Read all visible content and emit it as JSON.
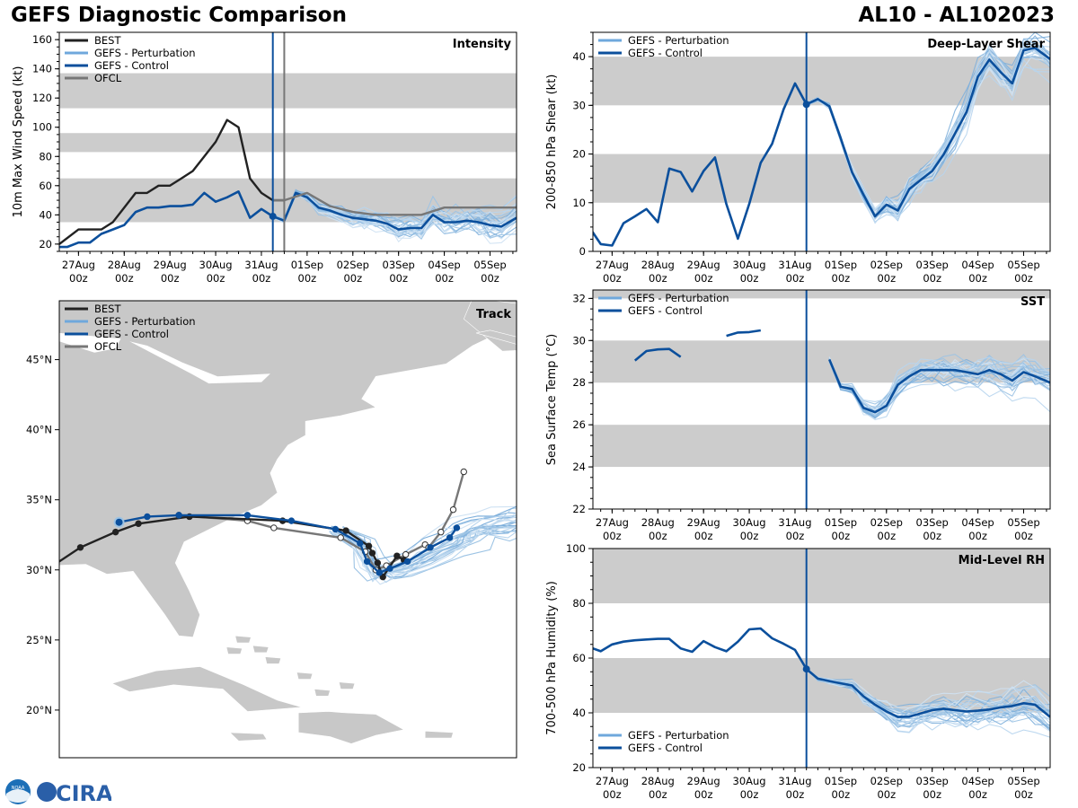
{
  "header": {
    "title": "GEFS Diagnostic Comparison",
    "storm_id": "AL10 - AL102023"
  },
  "logo": {
    "noaa": "NOAA",
    "cira": "CIRA"
  },
  "colors": {
    "best": "#222222",
    "pert": "#7fb0dc",
    "pert_legend": "#6fa8dc",
    "control": "#0b4f9c",
    "ofcl": "#777777",
    "band": "#cccccc",
    "land": "#c8c8c8"
  },
  "time_axis": {
    "ticks": [
      {
        "day": 0,
        "label": "27Aug",
        "sub": "00z"
      },
      {
        "day": 1,
        "label": "28Aug",
        "sub": "00z"
      },
      {
        "day": 2,
        "label": "29Aug",
        "sub": "00z"
      },
      {
        "day": 3,
        "label": "30Aug",
        "sub": "00z"
      },
      {
        "day": 4,
        "label": "31Aug",
        "sub": "00z"
      },
      {
        "day": 5,
        "label": "01Sep",
        "sub": "00z"
      },
      {
        "day": 6,
        "label": "02Sep",
        "sub": "00z"
      },
      {
        "day": 7,
        "label": "03Sep",
        "sub": "00z"
      },
      {
        "day": 8,
        "label": "04Sep",
        "sub": "00z"
      },
      {
        "day": 9,
        "label": "05Sep",
        "sub": "00z"
      }
    ],
    "xlim": [
      -0.42,
      9.58
    ],
    "init_day": 4.25
  },
  "chart_data": [
    {
      "id": "intensity",
      "type": "line",
      "title": "Intensity",
      "ylabel": "10m Max Wind Speed (kt)",
      "ylim": [
        15,
        165
      ],
      "yticks": [
        20,
        40,
        60,
        80,
        100,
        120,
        140,
        160
      ],
      "bands": [
        [
          35,
          65
        ],
        [
          83,
          96
        ],
        [
          113,
          137
        ]
      ],
      "legend": [
        "BEST",
        "GEFS - Perturbation",
        "GEFS - Control",
        "OFCL"
      ],
      "ofcl_day": 4.5,
      "series": [
        {
          "name": "BEST",
          "x": [
            -0.42,
            0,
            0.5,
            0.75,
            1,
            1.25,
            1.5,
            1.75,
            2,
            2.25,
            2.5,
            2.75,
            3,
            3.25,
            3.5,
            3.75,
            4,
            4.25,
            4.5
          ],
          "y": [
            20,
            30,
            30,
            35,
            45,
            55,
            55,
            60,
            60,
            65,
            70,
            80,
            90,
            105,
            100,
            65,
            55,
            50,
            50
          ]
        },
        {
          "name": "GEFS - Control",
          "x": [
            -0.42,
            -0.25,
            0,
            0.25,
            0.5,
            0.75,
            1,
            1.25,
            1.5,
            1.75,
            2,
            2.25,
            2.5,
            2.75,
            3,
            3.25,
            3.5,
            3.75,
            4,
            4.25,
            4.5,
            4.75,
            5,
            5.25,
            5.5,
            5.75,
            6,
            6.25,
            6.5,
            6.75,
            7,
            7.25,
            7.5,
            7.75,
            8,
            8.25,
            8.5,
            8.75,
            9,
            9.25,
            9.58
          ],
          "y": [
            18,
            18,
            21,
            21,
            27,
            30,
            33,
            42,
            45,
            45,
            46,
            46,
            47,
            55,
            49,
            52,
            56,
            38,
            44,
            39,
            36,
            55,
            52,
            45,
            43,
            40,
            38,
            37,
            36,
            34,
            30,
            31,
            31,
            40,
            35,
            35,
            36,
            35,
            33,
            32,
            38
          ]
        },
        {
          "name": "OFCL",
          "x": [
            4.25,
            4.5,
            5,
            5.5,
            6,
            6.5,
            7,
            7.5,
            8,
            8.5,
            9,
            9.58
          ],
          "y": [
            50,
            50,
            55,
            46,
            42,
            40,
            40,
            40,
            45,
            45,
            45,
            45
          ]
        }
      ]
    },
    {
      "id": "shear",
      "type": "line",
      "title": "Deep-Layer Shear",
      "ylabel": "200-850 hPa Shear (kt)",
      "ylim": [
        0,
        45
      ],
      "yticks": [
        0,
        10,
        20,
        30,
        40
      ],
      "bands": [
        [
          10,
          20
        ],
        [
          30,
          40
        ]
      ],
      "legend": [
        "GEFS - Perturbation",
        "GEFS - Control"
      ],
      "series": [
        {
          "name": "GEFS - Control",
          "x": [
            -0.5,
            -0.25,
            0,
            0.25,
            0.5,
            0.75,
            1,
            1.25,
            1.5,
            1.75,
            2,
            2.25,
            2.5,
            2.75,
            3,
            3.25,
            3.5,
            3.75,
            4,
            4.25,
            4.5,
            4.75,
            5,
            5.25,
            5.5,
            5.75,
            6,
            6.25,
            6.5,
            6.75,
            7,
            7.25,
            7.5,
            7.75,
            8,
            8.25,
            8.5,
            8.75,
            9,
            9.25,
            9.58
          ],
          "y": [
            5,
            1.5,
            1.2,
            5.8,
            7.2,
            8.7,
            6,
            17,
            16.3,
            12.3,
            16.5,
            19.3,
            9.7,
            2.6,
            9.8,
            18.2,
            22.1,
            29.2,
            34.5,
            30.2,
            31.3,
            29.8,
            23.2,
            16.2,
            11.6,
            7.2,
            9.6,
            8.4,
            12.8,
            14.7,
            16.5,
            19.9,
            24.2,
            28.6,
            35.9,
            39.4,
            36.8,
            34.5,
            41.3,
            41.8,
            39.5
          ]
        }
      ]
    },
    {
      "id": "sst",
      "type": "line",
      "title": "SST",
      "ylabel": "Sea Surface Temp (°C)",
      "ylim": [
        22,
        32.4
      ],
      "yticks": [
        22,
        24,
        26,
        28,
        30,
        32
      ],
      "bands": [
        [
          24,
          26
        ],
        [
          28,
          30
        ],
        [
          32,
          32.4
        ]
      ],
      "legend": [
        "GEFS - Perturbation",
        "GEFS - Control"
      ],
      "series": [
        {
          "name": "GEFS - Control",
          "segments": [
            {
              "x": [
                0.5,
                0.75,
                1,
                1.25,
                1.5
              ],
              "y": [
                29.05,
                29.5,
                29.58,
                29.6,
                29.22
              ]
            },
            {
              "x": [
                2.5,
                2.75,
                3,
                3.25
              ],
              "y": [
                30.22,
                30.38,
                30.4,
                30.48
              ]
            },
            {
              "x": [
                4.75,
                5,
                5.25,
                5.5,
                5.75,
                6,
                6.25,
                6.5,
                6.75,
                7,
                7.25,
                7.5,
                7.75,
                8,
                8.25,
                8.5,
                8.75,
                9,
                9.25,
                9.58
              ],
              "y": [
                29.1,
                27.8,
                27.7,
                26.8,
                26.6,
                26.9,
                27.9,
                28.3,
                28.6,
                28.6,
                28.6,
                28.6,
                28.5,
                28.4,
                28.6,
                28.4,
                28.1,
                28.5,
                28.3,
                28.0
              ]
            }
          ]
        }
      ]
    },
    {
      "id": "rh",
      "type": "line",
      "title": "Mid-Level RH",
      "ylabel": "700-500 hPa Humidity (%)",
      "ylim": [
        20,
        100
      ],
      "yticks": [
        20,
        40,
        60,
        80,
        100
      ],
      "bands": [
        [
          40,
          60
        ],
        [
          80,
          100
        ]
      ],
      "legend": [
        "GEFS - Perturbation",
        "GEFS - Control"
      ],
      "series": [
        {
          "name": "GEFS - Control",
          "x": [
            -0.5,
            -0.25,
            0,
            0.25,
            0.5,
            0.75,
            1,
            1.25,
            1.5,
            1.75,
            2,
            2.25,
            2.5,
            2.75,
            3,
            3.25,
            3.5,
            3.75,
            4,
            4.25,
            4.5,
            4.75,
            5,
            5.25,
            5.5,
            5.75,
            6,
            6.25,
            6.5,
            6.75,
            7,
            7.25,
            7.5,
            7.75,
            8,
            8.25,
            8.5,
            8.75,
            9,
            9.25,
            9.58
          ],
          "y": [
            64,
            62.5,
            65,
            66,
            66.5,
            66.8,
            67,
            67,
            63.5,
            62.3,
            66.2,
            64,
            62.5,
            66,
            70.5,
            70.8,
            67.2,
            65.2,
            63,
            56,
            52.5,
            51.6,
            50.8,
            50,
            46,
            43,
            40.5,
            38.5,
            38.6,
            39.8,
            41,
            41.5,
            41,
            40.5,
            40.8,
            41.2,
            42,
            42.5,
            43.5,
            43,
            38.5
          ]
        }
      ]
    },
    {
      "id": "track",
      "type": "map",
      "title": "Track",
      "legend": [
        "BEST",
        "GEFS - Perturbation",
        "GEFS - Control",
        "OFCL"
      ],
      "lon_range": [
        -88,
        -62
      ],
      "lat_range": [
        16.6,
        49.2
      ],
      "lat_ticks": [
        20,
        25,
        30,
        35,
        40,
        45
      ],
      "lat_labels": [
        "20°N",
        "25°N",
        "30°N",
        "35°N",
        "40°N",
        "45°N"
      ],
      "best_track": {
        "lon": [
          -88,
          -86.8,
          -84.8,
          -83.5,
          -80.6,
          -75.3,
          -71.7,
          -70.4,
          -70.2,
          -69.9,
          -69.6,
          -68.8,
          -68.4
        ],
        "lat": [
          30.6,
          31.6,
          32.7,
          33.3,
          33.8,
          33.5,
          32.8,
          31.7,
          31.2,
          30.5,
          29.5,
          31,
          30.7
        ]
      },
      "control_track": {
        "lon": [
          -84.6,
          -83,
          -81.2,
          -77.3,
          -74.8,
          -72.3,
          -70.9,
          -70.5,
          -69.8,
          -69.2,
          -68.2,
          -66.9,
          -65.8,
          -65.4
        ],
        "lat": [
          33.4,
          33.8,
          33.9,
          33.9,
          33.5,
          32.9,
          31.9,
          30.6,
          29.8,
          30.1,
          30.6,
          31.6,
          32.3,
          33
        ]
      },
      "ofcl_track": {
        "lon": [
          -81.2,
          -77.3,
          -75.8,
          -72,
          -70.6,
          -70,
          -69.4,
          -68.3,
          -67.2,
          -67,
          -66.3,
          -65.6,
          -65
        ],
        "lat": [
          33.9,
          33.5,
          33,
          32.3,
          31.3,
          30,
          30.3,
          31.1,
          31.8,
          31.6,
          32.7,
          34.3,
          37
        ]
      }
    }
  ]
}
